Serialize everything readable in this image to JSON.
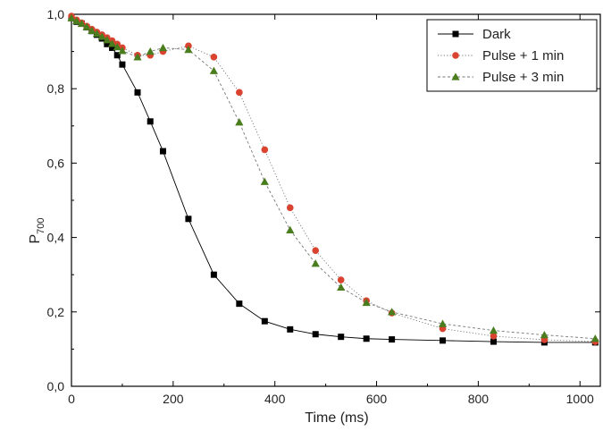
{
  "chart_data": {
    "type": "line",
    "title": "",
    "xlabel": "Time (ms)",
    "ylabel_main": "P",
    "ylabel_sub": "700",
    "xlim": [
      0,
      1040
    ],
    "ylim": [
      0.0,
      1.0
    ],
    "xticks": [
      0,
      200,
      400,
      600,
      800,
      1000
    ],
    "xtick_labels": [
      "0",
      "200",
      "400",
      "600",
      "800",
      "1000"
    ],
    "yticks": [
      0.0,
      0.2,
      0.4,
      0.6,
      0.8,
      1.0
    ],
    "ytick_labels": [
      "0,0",
      "0,2",
      "0,4",
      "0,6",
      "0,8",
      "1,0"
    ],
    "grid": false,
    "legend_position": "top-right",
    "series": [
      {
        "name": "Dark",
        "color": "#000000",
        "marker": "square",
        "line_style": "solid",
        "x": [
          0,
          10,
          20,
          30,
          40,
          50,
          60,
          70,
          80,
          90,
          100,
          130,
          155,
          180,
          230,
          280,
          330,
          380,
          430,
          480,
          530,
          580,
          630,
          730,
          830,
          930,
          1030
        ],
        "y": [
          0.99,
          0.98,
          0.975,
          0.965,
          0.955,
          0.945,
          0.935,
          0.92,
          0.91,
          0.89,
          0.865,
          0.79,
          0.712,
          0.632,
          0.45,
          0.3,
          0.222,
          0.175,
          0.153,
          0.14,
          0.133,
          0.128,
          0.126,
          0.123,
          0.12,
          0.118,
          0.118
        ]
      },
      {
        "name": "Pulse + 1 min",
        "color": "#d9432f",
        "marker": "circle",
        "line_style": "dotted",
        "x": [
          0,
          10,
          20,
          30,
          40,
          50,
          60,
          70,
          80,
          90,
          100,
          130,
          155,
          180,
          230,
          280,
          330,
          380,
          430,
          480,
          530,
          580,
          630,
          730,
          830,
          930,
          1030
        ],
        "y": [
          0.995,
          0.985,
          0.977,
          0.968,
          0.96,
          0.952,
          0.945,
          0.937,
          0.929,
          0.92,
          0.91,
          0.89,
          0.89,
          0.9,
          0.915,
          0.885,
          0.79,
          0.636,
          0.48,
          0.365,
          0.286,
          0.23,
          0.197,
          0.155,
          0.135,
          0.125,
          0.12
        ]
      },
      {
        "name": "Pulse + 3 min",
        "color": "#4a7d1e",
        "marker": "triangle",
        "line_style": "dashed",
        "x": [
          0,
          10,
          20,
          30,
          40,
          50,
          60,
          70,
          80,
          90,
          100,
          130,
          155,
          180,
          230,
          280,
          330,
          380,
          430,
          480,
          530,
          580,
          630,
          730,
          830,
          930,
          1030
        ],
        "y": [
          0.99,
          0.982,
          0.975,
          0.966,
          0.956,
          0.948,
          0.94,
          0.931,
          0.921,
          0.912,
          0.902,
          0.885,
          0.9,
          0.91,
          0.905,
          0.848,
          0.71,
          0.55,
          0.42,
          0.33,
          0.266,
          0.225,
          0.2,
          0.168,
          0.15,
          0.138,
          0.128
        ]
      }
    ]
  }
}
